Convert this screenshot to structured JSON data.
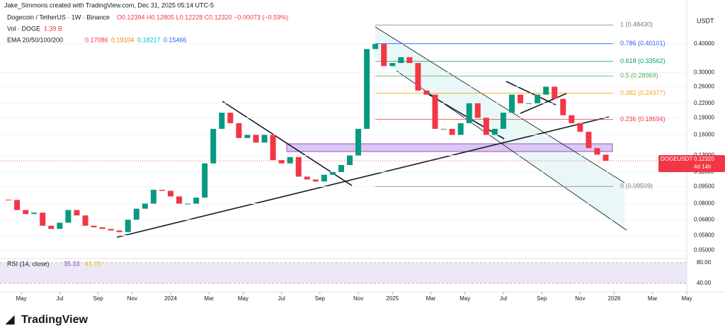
{
  "header": {
    "author_line": "Jake_Simmons created with TradingView.com, Dec 31, 2025 05:14 UTC-5",
    "symbol": "Dogecoin / TetherUS · 1W · Binance",
    "ohlc": "O0.12394 H0.12805 L0.12228 C0.12320 −0.00073 (−0.59%)",
    "volume_label": "Vol · DOGE",
    "volume_value": "1.39 B",
    "ema_label": "EMA 20/50/100/200",
    "ema_values": [
      "0.17086",
      "0.19104",
      "0.18217",
      "0.15466"
    ]
  },
  "chart_data": {
    "type": "candlestick",
    "currency": "USDT",
    "x": [
      -38,
      -36,
      -34,
      -32,
      -30,
      -28,
      -26,
      -24,
      -22,
      -20,
      -18,
      -16,
      -14,
      -12,
      -10,
      -8,
      -6,
      -4,
      -2,
      0,
      2,
      4,
      6,
      8,
      10,
      12,
      14,
      16,
      18,
      20,
      22,
      24,
      26,
      28,
      30,
      32,
      34,
      36,
      38,
      40,
      42,
      44,
      46,
      48,
      50,
      52,
      54,
      56,
      58,
      60,
      62,
      64,
      66,
      68,
      70,
      72,
      74,
      76,
      78,
      80,
      82,
      84,
      86,
      88,
      90,
      92,
      94,
      96,
      98,
      100,
      102
    ],
    "close": [
      0.083,
      0.075,
      0.072,
      0.073,
      0.064,
      0.062,
      0.066,
      0.075,
      0.071,
      0.064,
      0.063,
      0.062,
      0.061,
      0.06,
      0.068,
      0.076,
      0.08,
      0.092,
      0.091,
      0.086,
      0.08,
      0.08,
      0.085,
      0.12,
      0.17,
      0.2,
      0.18,
      0.155,
      0.16,
      0.148,
      0.16,
      0.124,
      0.12,
      0.128,
      0.105,
      0.102,
      0.1,
      0.107,
      0.11,
      0.118,
      0.13,
      0.17,
      0.38,
      0.4,
      0.32,
      0.33,
      0.35,
      0.33,
      0.25,
      0.24,
      0.17,
      0.17,
      0.16,
      0.18,
      0.22,
      0.19,
      0.16,
      0.17,
      0.2,
      0.24,
      0.22,
      0.22,
      0.24,
      0.26,
      0.23,
      0.195,
      0.18,
      0.165,
      0.14,
      0.131,
      0.1232
    ],
    "xlim": [
      -40,
      121
    ],
    "xticks": [
      {
        "value": -35,
        "label": "May"
      },
      {
        "value": -26,
        "label": "Jul"
      },
      {
        "value": -17,
        "label": "Sep"
      },
      {
        "value": -9,
        "label": "Nov"
      },
      {
        "value": 0,
        "label": "2024"
      },
      {
        "value": 9,
        "label": "Mar"
      },
      {
        "value": 17,
        "label": "May"
      },
      {
        "value": 26,
        "label": "Jul"
      },
      {
        "value": 35,
        "label": "Sep"
      },
      {
        "value": 44,
        "label": "Nov"
      },
      {
        "value": 52,
        "label": "2025"
      },
      {
        "value": 61,
        "label": "Mar"
      },
      {
        "value": 69,
        "label": "May"
      },
      {
        "value": 78,
        "label": "Jul"
      },
      {
        "value": 87,
        "label": "Sep"
      },
      {
        "value": 96,
        "label": "Nov"
      },
      {
        "value": 104,
        "label": "2026"
      },
      {
        "value": 113,
        "label": "Mar"
      },
      {
        "value": 121,
        "label": "May"
      }
    ],
    "ylim": [
      0.046,
      0.623
    ],
    "log_scale": true,
    "yticks": [
      {
        "value": 0.4,
        "label": "0.40000"
      },
      {
        "value": 0.3,
        "label": "0.30000"
      },
      {
        "value": 0.26,
        "label": "0.26000"
      },
      {
        "value": 0.22,
        "label": "0.22000"
      },
      {
        "value": 0.19,
        "label": "0.19000"
      },
      {
        "value": 0.16,
        "label": "0.16000"
      },
      {
        "value": 0.13,
        "label": "0.13000"
      },
      {
        "value": 0.11,
        "label": "0.11000"
      },
      {
        "value": 0.095,
        "label": "0.09500"
      },
      {
        "value": 0.08,
        "label": "0.08000"
      },
      {
        "value": 0.068,
        "label": "0.06800"
      },
      {
        "value": 0.058,
        "label": "0.05800"
      },
      {
        "value": 0.05,
        "label": "0.05000"
      }
    ],
    "up_color": "#089981",
    "down_color": "#f23645",
    "fib_levels": [
      {
        "value": 0.4843,
        "label": "1 (0.48430)",
        "color": "#787b86"
      },
      {
        "value": 0.40101,
        "label": "0.786 (0.40101)",
        "color": "#2962ff"
      },
      {
        "value": 0.33562,
        "label": "0.618 (0.33562)",
        "color": "#089981"
      },
      {
        "value": 0.28969,
        "label": "0.5 (0.28969)",
        "color": "#4caf50"
      },
      {
        "value": 0.24377,
        "label": "0.382 (0.24377)",
        "color": "#f0a81a"
      },
      {
        "value": 0.18694,
        "label": "0.236 (0.18694)",
        "color": "#f23645"
      },
      {
        "value": 0.09509,
        "label": "0 (0.09509)",
        "color": "#787b86"
      }
    ],
    "last_price": {
      "symbol": "DOGEUSDT",
      "price": "0.12320",
      "countdown": "4d 14h"
    },
    "rsi": {
      "label": "RSI (14, close)",
      "values": [
        "35.33",
        "41.70"
      ],
      "ylim": [
        26,
        88
      ],
      "yticks": [
        {
          "value": 80,
          "label": "80.00"
        },
        {
          "value": 40,
          "label": "40.00"
        }
      ]
    }
  },
  "footer": {
    "brand": "TradingView"
  }
}
